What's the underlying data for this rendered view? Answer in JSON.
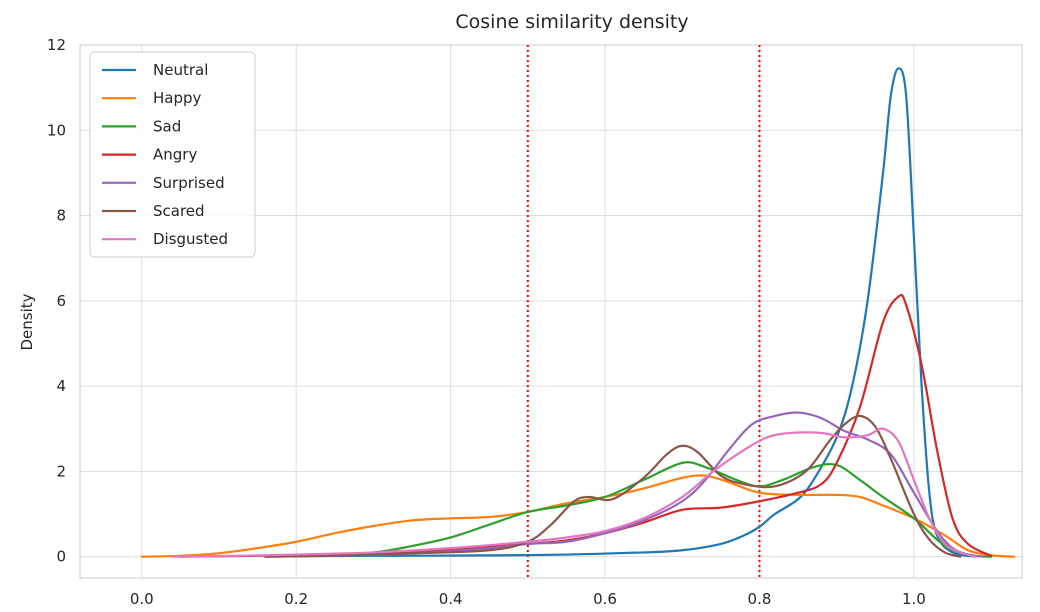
{
  "chart_data": {
    "type": "line",
    "title": "Cosine similarity density",
    "xlabel": "",
    "ylabel": "Density",
    "xlim": [
      -0.08,
      1.14
    ],
    "ylim": [
      -0.5,
      12
    ],
    "xticks": [
      0.0,
      0.2,
      0.4,
      0.6,
      0.8,
      1.0
    ],
    "xtick_labels": [
      "0.0",
      "0.2",
      "0.4",
      "0.6",
      "0.8",
      "1.0"
    ],
    "yticks": [
      0,
      2,
      4,
      6,
      8,
      10,
      12
    ],
    "ytick_labels": [
      "0",
      "2",
      "4",
      "6",
      "8",
      "10",
      "12"
    ],
    "grid": true,
    "legend_position": "top-left",
    "vlines": [
      {
        "x": 0.5,
        "color": "#ff0000",
        "style": "dotted"
      },
      {
        "x": 0.8,
        "color": "#ff0000",
        "style": "dotted"
      }
    ],
    "series": [
      {
        "name": "Neutral",
        "color": "#1f77b4",
        "points": [
          [
            0.16,
            0.01
          ],
          [
            0.3,
            0.02
          ],
          [
            0.45,
            0.03
          ],
          [
            0.55,
            0.05
          ],
          [
            0.65,
            0.1
          ],
          [
            0.7,
            0.15
          ],
          [
            0.75,
            0.3
          ],
          [
            0.78,
            0.5
          ],
          [
            0.8,
            0.7
          ],
          [
            0.82,
            1.0
          ],
          [
            0.85,
            1.35
          ],
          [
            0.87,
            1.8
          ],
          [
            0.9,
            2.8
          ],
          [
            0.92,
            4.0
          ],
          [
            0.94,
            6.0
          ],
          [
            0.96,
            9.0
          ],
          [
            0.97,
            10.8
          ],
          [
            0.98,
            11.45
          ],
          [
            0.99,
            10.8
          ],
          [
            1.0,
            7.5
          ],
          [
            1.01,
            4.0
          ],
          [
            1.02,
            1.5
          ],
          [
            1.03,
            0.5
          ],
          [
            1.05,
            0.1
          ],
          [
            1.08,
            0.0
          ]
        ]
      },
      {
        "name": "Happy",
        "color": "#ff7f0e",
        "points": [
          [
            0.0,
            0.0
          ],
          [
            0.05,
            0.02
          ],
          [
            0.1,
            0.08
          ],
          [
            0.15,
            0.2
          ],
          [
            0.2,
            0.35
          ],
          [
            0.25,
            0.55
          ],
          [
            0.3,
            0.72
          ],
          [
            0.35,
            0.85
          ],
          [
            0.4,
            0.9
          ],
          [
            0.45,
            0.93
          ],
          [
            0.5,
            1.05
          ],
          [
            0.55,
            1.25
          ],
          [
            0.6,
            1.4
          ],
          [
            0.65,
            1.6
          ],
          [
            0.7,
            1.85
          ],
          [
            0.73,
            1.9
          ],
          [
            0.76,
            1.75
          ],
          [
            0.8,
            1.5
          ],
          [
            0.85,
            1.45
          ],
          [
            0.9,
            1.45
          ],
          [
            0.93,
            1.4
          ],
          [
            0.96,
            1.2
          ],
          [
            1.0,
            0.9
          ],
          [
            1.04,
            0.5
          ],
          [
            1.07,
            0.15
          ],
          [
            1.1,
            0.03
          ],
          [
            1.13,
            0.0
          ]
        ]
      },
      {
        "name": "Sad",
        "color": "#2ca02c",
        "points": [
          [
            0.16,
            0.0
          ],
          [
            0.22,
            0.02
          ],
          [
            0.3,
            0.1
          ],
          [
            0.35,
            0.25
          ],
          [
            0.4,
            0.45
          ],
          [
            0.45,
            0.75
          ],
          [
            0.5,
            1.05
          ],
          [
            0.55,
            1.2
          ],
          [
            0.6,
            1.4
          ],
          [
            0.65,
            1.8
          ],
          [
            0.7,
            2.2
          ],
          [
            0.73,
            2.1
          ],
          [
            0.77,
            1.8
          ],
          [
            0.8,
            1.65
          ],
          [
            0.83,
            1.8
          ],
          [
            0.87,
            2.1
          ],
          [
            0.9,
            2.15
          ],
          [
            0.93,
            1.8
          ],
          [
            0.96,
            1.4
          ],
          [
            1.0,
            0.9
          ],
          [
            1.03,
            0.4
          ],
          [
            1.05,
            0.15
          ],
          [
            1.08,
            0.02
          ],
          [
            1.1,
            0.0
          ]
        ]
      },
      {
        "name": "Angry",
        "color": "#d62728",
        "points": [
          [
            0.05,
            0.0
          ],
          [
            0.15,
            0.02
          ],
          [
            0.25,
            0.05
          ],
          [
            0.35,
            0.1
          ],
          [
            0.42,
            0.2
          ],
          [
            0.5,
            0.3
          ],
          [
            0.55,
            0.38
          ],
          [
            0.6,
            0.55
          ],
          [
            0.65,
            0.8
          ],
          [
            0.7,
            1.1
          ],
          [
            0.75,
            1.15
          ],
          [
            0.8,
            1.3
          ],
          [
            0.85,
            1.5
          ],
          [
            0.88,
            1.7
          ],
          [
            0.9,
            2.2
          ],
          [
            0.93,
            3.5
          ],
          [
            0.96,
            5.5
          ],
          [
            0.98,
            6.1
          ],
          [
            0.99,
            5.9
          ],
          [
            1.01,
            4.5
          ],
          [
            1.03,
            2.5
          ],
          [
            1.05,
            0.9
          ],
          [
            1.07,
            0.3
          ],
          [
            1.1,
            0.02
          ]
        ]
      },
      {
        "name": "Surprised",
        "color": "#9467bd",
        "points": [
          [
            0.16,
            0.0
          ],
          [
            0.25,
            0.02
          ],
          [
            0.35,
            0.08
          ],
          [
            0.45,
            0.2
          ],
          [
            0.5,
            0.3
          ],
          [
            0.55,
            0.35
          ],
          [
            0.6,
            0.55
          ],
          [
            0.65,
            0.85
          ],
          [
            0.7,
            1.3
          ],
          [
            0.73,
            1.8
          ],
          [
            0.76,
            2.5
          ],
          [
            0.79,
            3.1
          ],
          [
            0.82,
            3.3
          ],
          [
            0.85,
            3.38
          ],
          [
            0.88,
            3.25
          ],
          [
            0.91,
            2.95
          ],
          [
            0.94,
            2.75
          ],
          [
            0.97,
            2.4
          ],
          [
            1.0,
            1.5
          ],
          [
            1.03,
            0.6
          ],
          [
            1.05,
            0.2
          ],
          [
            1.07,
            0.05
          ],
          [
            1.09,
            0.0
          ]
        ]
      },
      {
        "name": "Scared",
        "color": "#8c564b",
        "points": [
          [
            0.16,
            0.0
          ],
          [
            0.25,
            0.03
          ],
          [
            0.35,
            0.08
          ],
          [
            0.45,
            0.15
          ],
          [
            0.5,
            0.35
          ],
          [
            0.53,
            0.75
          ],
          [
            0.56,
            1.3
          ],
          [
            0.58,
            1.4
          ],
          [
            0.61,
            1.35
          ],
          [
            0.65,
            1.85
          ],
          [
            0.68,
            2.4
          ],
          [
            0.7,
            2.6
          ],
          [
            0.72,
            2.45
          ],
          [
            0.75,
            1.9
          ],
          [
            0.78,
            1.7
          ],
          [
            0.82,
            1.65
          ],
          [
            0.86,
            2.0
          ],
          [
            0.89,
            2.7
          ],
          [
            0.91,
            3.1
          ],
          [
            0.93,
            3.3
          ],
          [
            0.95,
            3.05
          ],
          [
            0.97,
            2.3
          ],
          [
            1.0,
            1.0
          ],
          [
            1.02,
            0.4
          ],
          [
            1.04,
            0.1
          ],
          [
            1.06,
            0.0
          ]
        ]
      },
      {
        "name": "Disgusted",
        "color": "#e377c2",
        "points": [
          [
            0.04,
            0.0
          ],
          [
            0.12,
            0.02
          ],
          [
            0.2,
            0.05
          ],
          [
            0.3,
            0.1
          ],
          [
            0.4,
            0.2
          ],
          [
            0.5,
            0.35
          ],
          [
            0.55,
            0.45
          ],
          [
            0.6,
            0.6
          ],
          [
            0.65,
            0.9
          ],
          [
            0.7,
            1.4
          ],
          [
            0.74,
            2.0
          ],
          [
            0.78,
            2.5
          ],
          [
            0.81,
            2.8
          ],
          [
            0.84,
            2.9
          ],
          [
            0.88,
            2.9
          ],
          [
            0.91,
            2.8
          ],
          [
            0.94,
            2.85
          ],
          [
            0.96,
            3.0
          ],
          [
            0.98,
            2.7
          ],
          [
            1.0,
            1.8
          ],
          [
            1.02,
            0.9
          ],
          [
            1.04,
            0.3
          ],
          [
            1.06,
            0.1
          ],
          [
            1.08,
            0.0
          ]
        ]
      }
    ]
  }
}
